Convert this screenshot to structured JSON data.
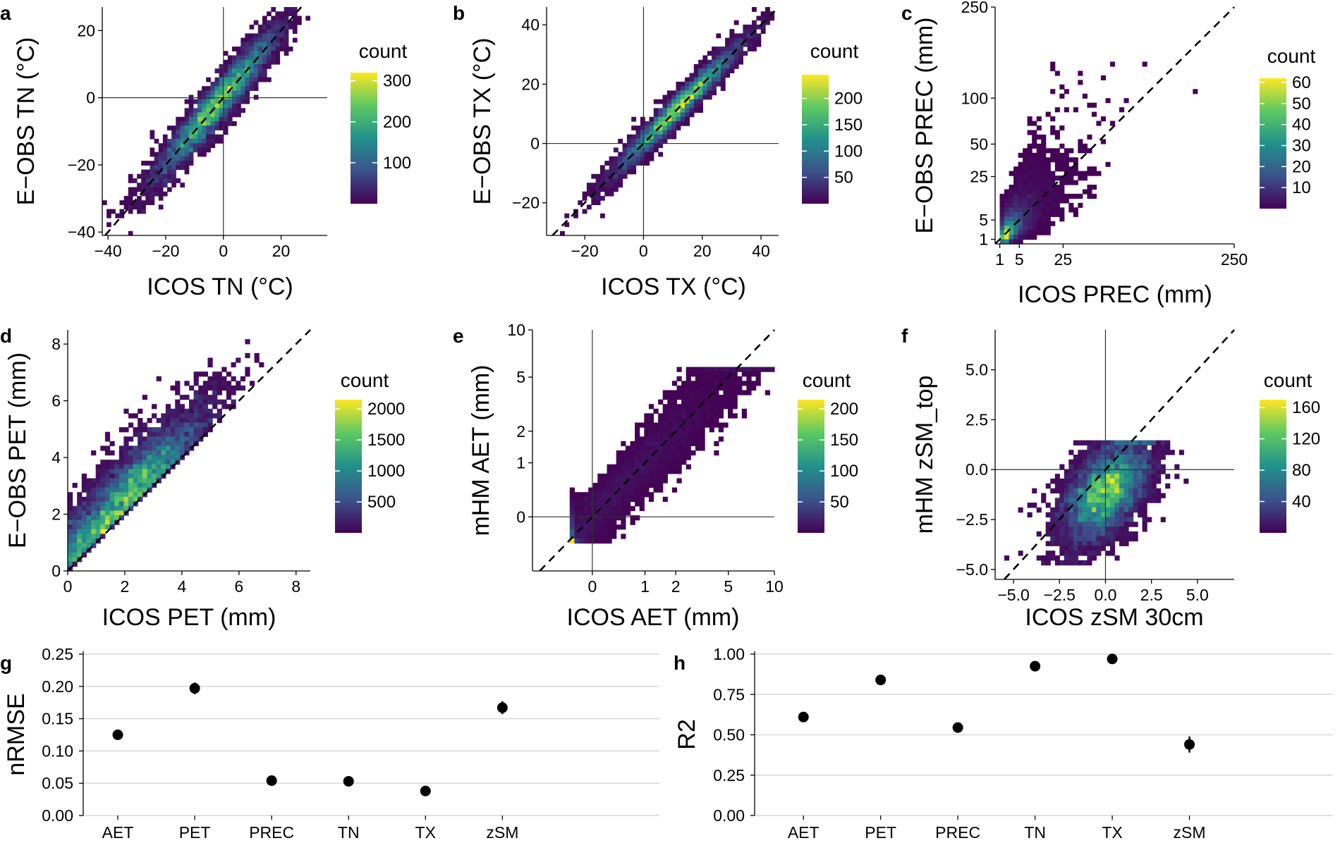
{
  "colors": {
    "viridis": [
      "#440154",
      "#3b528b",
      "#21918c",
      "#5ec962",
      "#fde725"
    ],
    "points": "#000000",
    "grid": "#d9d9d9"
  },
  "chart_data": [
    {
      "panel": "a",
      "type": "heatmap",
      "xlabel": "ICOS TN (°C)",
      "ylabel": "E−OBS TN (°C)",
      "xlim": [
        -42,
        36
      ],
      "ylim": [
        -41,
        27
      ],
      "xticks": [
        -40,
        -20,
        0,
        20
      ],
      "xtick_labels": [
        "−40",
        "−20",
        "0",
        "20"
      ],
      "yticks": [
        -40,
        -20,
        0,
        20
      ],
      "ytick_labels": [
        "−40",
        "−20",
        "0",
        "20"
      ],
      "scale": "linear",
      "zero_lines": true,
      "identity_line": true,
      "colorbar": {
        "title": "count",
        "min": 0,
        "max": 320,
        "ticks": [
          100,
          200,
          300
        ],
        "tick_labels": [
          "100",
          "200",
          "300"
        ]
      }
    },
    {
      "panel": "b",
      "type": "heatmap",
      "xlabel": "ICOS TX (°C)",
      "ylabel": "E−OBS TX (°C)",
      "xlim": [
        -33,
        46
      ],
      "ylim": [
        -31,
        46
      ],
      "xticks": [
        -20,
        0,
        20,
        40
      ],
      "xtick_labels": [
        "−20",
        "0",
        "20",
        "40"
      ],
      "yticks": [
        -20,
        0,
        20,
        40
      ],
      "ytick_labels": [
        "−20",
        "0",
        "20",
        "40"
      ],
      "scale": "linear",
      "zero_lines": true,
      "identity_line": true,
      "colorbar": {
        "title": "count",
        "min": 0,
        "max": 245,
        "ticks": [
          50,
          100,
          150,
          200
        ],
        "tick_labels": [
          "50",
          "100",
          "150",
          "200"
        ]
      }
    },
    {
      "panel": "c",
      "type": "heatmap",
      "xlabel": "ICOS PREC (mm)",
      "ylabel": "E−OBS PREC (mm)",
      "xlim": [
        0.5,
        250
      ],
      "ylim": [
        0.5,
        250
      ],
      "xticks": [
        1,
        5,
        25,
        250
      ],
      "xtick_labels": [
        "1",
        "5",
        "25",
        "250"
      ],
      "yticks": [
        1,
        5,
        25,
        50,
        100,
        250
      ],
      "ytick_labels": [
        "1",
        "5",
        "25",
        "50",
        "100",
        "250"
      ],
      "scale": "sqrt",
      "zero_lines": false,
      "identity_line": true,
      "colorbar": {
        "title": "count",
        "min": 0,
        "max": 62,
        "ticks": [
          10,
          20,
          30,
          40,
          50,
          60
        ],
        "tick_labels": [
          "10",
          "20",
          "30",
          "40",
          "50",
          "60"
        ]
      }
    },
    {
      "panel": "d",
      "type": "heatmap",
      "xlabel": "ICOS PET (mm)",
      "ylabel": "E−OBS PET (mm)",
      "xlim": [
        0,
        8.5
      ],
      "ylim": [
        0,
        8.5
      ],
      "xticks": [
        0,
        2,
        4,
        6,
        8
      ],
      "xtick_labels": [
        "0",
        "2",
        "4",
        "6",
        "8"
      ],
      "yticks": [
        0,
        2,
        4,
        6,
        8
      ],
      "ytick_labels": [
        "0",
        "2",
        "4",
        "6",
        "8"
      ],
      "scale": "linear",
      "zero_lines": false,
      "identity_line": true,
      "colorbar": {
        "title": "count",
        "min": 0,
        "max": 2150,
        "ticks": [
          500,
          1000,
          1500,
          2000
        ],
        "tick_labels": [
          "500",
          "1000",
          "1500",
          "2000"
        ]
      }
    },
    {
      "panel": "e",
      "type": "heatmap",
      "xlabel": "ICOS AET (mm)",
      "ylabel": "mHM AET (mm)",
      "xlim": [
        -1.2,
        10
      ],
      "ylim": [
        -1,
        10
      ],
      "xticks": [
        0,
        1,
        2,
        5,
        10
      ],
      "xtick_labels": [
        "0",
        "1",
        "2",
        "5",
        "10"
      ],
      "yticks": [
        0,
        1,
        2,
        5,
        10
      ],
      "ytick_labels": [
        "0",
        "1",
        "2",
        "5",
        "10"
      ],
      "scale": "pseudo-log",
      "zero_lines": true,
      "identity_line": true,
      "colorbar": {
        "title": "count",
        "min": 0,
        "max": 215,
        "ticks": [
          50,
          100,
          150,
          200
        ],
        "tick_labels": [
          "50",
          "100",
          "150",
          "200"
        ]
      }
    },
    {
      "panel": "f",
      "type": "heatmap",
      "xlabel": "ICOS zSM 30cm",
      "ylabel": "mHM zSM_top",
      "xlim": [
        -6,
        7
      ],
      "ylim": [
        -5.5,
        7
      ],
      "xticks": [
        -5,
        -2.5,
        0,
        2.5,
        5
      ],
      "xtick_labels": [
        "−5.0",
        "−2.5",
        "0.0",
        "2.5",
        "5.0"
      ],
      "yticks": [
        -5,
        -2.5,
        0,
        2.5,
        5
      ],
      "ytick_labels": [
        "−5.0",
        "−2.5",
        "0.0",
        "2.5",
        "5.0"
      ],
      "scale": "linear",
      "zero_lines": true,
      "identity_line": true,
      "colorbar": {
        "title": "count",
        "min": 0,
        "max": 170,
        "ticks": [
          40,
          80,
          120,
          160
        ],
        "tick_labels": [
          "40",
          "80",
          "120",
          "160"
        ]
      }
    },
    {
      "panel": "g",
      "type": "scatter",
      "ylabel": "nRMSE",
      "categories": [
        "AET",
        "PET",
        "PREC",
        "TN",
        "TX",
        "zSM"
      ],
      "values": [
        0.125,
        0.197,
        0.054,
        0.053,
        0.038,
        0.167
      ],
      "errors": [
        0.004,
        0.009,
        0.003,
        0.003,
        0.002,
        0.01
      ],
      "ylim": [
        0,
        0.25
      ],
      "yticks": [
        0,
        0.05,
        0.1,
        0.15,
        0.2,
        0.25
      ],
      "ytick_labels": [
        "0.00",
        "0.05",
        "0.10",
        "0.15",
        "0.20",
        "0.25"
      ],
      "grid": true
    },
    {
      "panel": "h",
      "type": "scatter",
      "ylabel": "R2",
      "categories": [
        "AET",
        "PET",
        "PREC",
        "TN",
        "TX",
        "zSM"
      ],
      "values": [
        0.61,
        0.84,
        0.545,
        0.925,
        0.97,
        0.44
      ],
      "errors": [
        0.03,
        0.012,
        0.012,
        0.01,
        0.01,
        0.05
      ],
      "ylim": [
        0,
        1
      ],
      "yticks": [
        0,
        0.25,
        0.5,
        0.75,
        1
      ],
      "ytick_labels": [
        "0.00",
        "0.25",
        "0.50",
        "0.75",
        "1.00"
      ],
      "grid": true
    }
  ]
}
